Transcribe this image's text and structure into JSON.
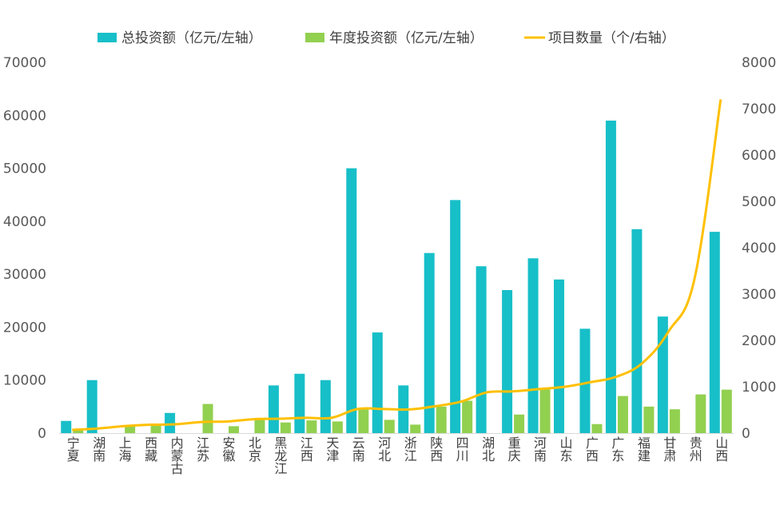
{
  "chart_data": {
    "type": "bar",
    "categories": [
      "宁夏",
      "湖南",
      "上海",
      "西藏",
      "内蒙古",
      "江苏",
      "安徽",
      "北京",
      "黑龙江",
      "江西",
      "天津",
      "云南",
      "河北",
      "浙江",
      "陕西",
      "四川",
      "湖北",
      "重庆",
      "河南",
      "山东",
      "广西",
      "广东",
      "福建",
      "甘肃",
      "贵州",
      "山西"
    ],
    "series": [
      {
        "name": "总投资额（亿元/左轴",
        "type": "bar",
        "axis": "left",
        "color": "#17BFC8",
        "values": [
          2300,
          10000,
          0,
          0,
          3800,
          0,
          0,
          0,
          9000,
          11200,
          10000,
          50000,
          19000,
          9000,
          34000,
          44000,
          31500,
          27000,
          33000,
          29000,
          19700,
          59000,
          38500,
          22000,
          0,
          38000
        ]
      },
      {
        "name": "年度投资额（亿元/左轴",
        "type": "bar",
        "axis": "left",
        "color": "#92D050",
        "values": [
          700,
          0,
          1300,
          1700,
          0,
          5500,
          1300,
          2800,
          2000,
          2400,
          2200,
          4500,
          2500,
          1600,
          5000,
          6100,
          0,
          3500,
          8400,
          0,
          1700,
          7000,
          5000,
          4500,
          7300,
          8200
        ]
      },
      {
        "name": "项目数量（个/右轴",
        "type": "line",
        "axis": "right",
        "color": "#FFC000",
        "values": [
          70,
          100,
          150,
          180,
          190,
          240,
          250,
          300,
          310,
          330,
          330,
          520,
          520,
          510,
          580,
          680,
          880,
          900,
          950,
          1000,
          1100,
          1220,
          1520,
          2200,
          3350,
          7200
        ]
      }
    ],
    "y_left": {
      "min": 0,
      "max": 70000,
      "ticks": [
        "0",
        "10000",
        "20000",
        "30000",
        "40000",
        "50000",
        "60000",
        "70000"
      ]
    },
    "y_right": {
      "min": 0,
      "max": 8000,
      "ticks": [
        "0",
        "1000",
        "2000",
        "3000",
        "4000",
        "5000",
        "6000",
        "7000",
        "8000"
      ]
    },
    "legend_position": "top",
    "grid": false
  }
}
